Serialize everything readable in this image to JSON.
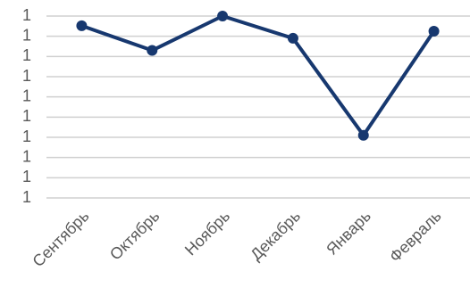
{
  "chart_data": {
    "type": "line",
    "categories": [
      "Сентябрь",
      "Октябрь",
      "Ноябрь",
      "Декабрь",
      "Январь",
      "Февраль"
    ],
    "series": [
      {
        "color": "#17386f",
        "values": [
          0.9952,
          0.983,
          1.0,
          0.989,
          0.941,
          0.9925
        ]
      }
    ],
    "ylim": [
      0.91,
      1.0
    ],
    "yticks": [
      {
        "value": 0.91,
        "label": "1"
      },
      {
        "value": 0.92,
        "label": "1"
      },
      {
        "value": 0.93,
        "label": "1"
      },
      {
        "value": 0.94,
        "label": "1"
      },
      {
        "value": 0.95,
        "label": "1"
      },
      {
        "value": 0.96,
        "label": "1"
      },
      {
        "value": 0.97,
        "label": "1"
      },
      {
        "value": 0.98,
        "label": "1"
      },
      {
        "value": 0.99,
        "label": "1"
      },
      1
    ],
    "grid": true
  }
}
